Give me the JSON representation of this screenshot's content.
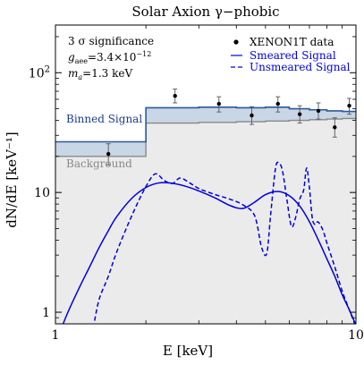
{
  "chart_data": {
    "type": "line",
    "title": "Solar Axion γ−phobic",
    "xlabel": "E [keV]",
    "ylabel": "dN/dE [keV⁻¹]",
    "x_scale": "log",
    "y_scale": "log",
    "xlim": [
      1,
      10
    ],
    "ylim": [
      0.8,
      250
    ],
    "x_ticks": [
      {
        "value": 1,
        "label": "1"
      },
      {
        "value": 10,
        "label": "10"
      }
    ],
    "y_ticks": [
      {
        "value": 1,
        "label": "1"
      },
      {
        "value": 10,
        "label": "10"
      },
      {
        "value": 100,
        "label": "10",
        "exp": "2"
      }
    ],
    "annotations": {
      "sig": "3 σ significance",
      "g_sym": "g",
      "g_sub": "aee",
      "g_val": "=3.4×10",
      "g_exp": "−12",
      "m_sym": "m",
      "m_sub": "a",
      "m_val": "=1.3 keV",
      "binned_label": "Binned Signal",
      "background_label": "Background"
    },
    "legend": {
      "position": "top-right",
      "entries": [
        {
          "label": "XENON1T data",
          "style": "point"
        },
        {
          "label": "Smeared Signal",
          "style": "solid"
        },
        {
          "label": "Unsmeared Signal",
          "style": "dashed"
        }
      ]
    },
    "colors": {
      "binned_fill": "#c9d6e6",
      "background_fill": "#ebebeb",
      "signal": "#0000dd",
      "binned_line": "#2a5a9a",
      "background_line": "#888888",
      "binned_text": "#1a3d8a",
      "background_text": "#888888"
    },
    "bins": [
      {
        "x0": 1.0,
        "x1": 2.0,
        "background": 20.0,
        "total": 26.5
      },
      {
        "x0": 2.0,
        "x1": 3.0,
        "background": 38.0,
        "total": 51.0
      },
      {
        "x0": 3.0,
        "x1": 4.0,
        "background": 38.5,
        "total": 51.5
      },
      {
        "x0": 4.0,
        "x1": 5.0,
        "background": 39.0,
        "total": 51.0
      },
      {
        "x0": 5.0,
        "x1": 6.0,
        "background": 39.5,
        "total": 51.5
      },
      {
        "x0": 6.0,
        "x1": 7.0,
        "background": 40.0,
        "total": 50.0
      },
      {
        "x0": 7.0,
        "x1": 8.0,
        "background": 40.5,
        "total": 49.0
      },
      {
        "x0": 8.0,
        "x1": 9.0,
        "background": 41.0,
        "total": 48.0
      },
      {
        "x0": 9.0,
        "x1": 10.0,
        "background": 41.5,
        "total": 47.5
      }
    ],
    "data_points": [
      {
        "x": 1.5,
        "y": 21.0,
        "ylo": 17.0,
        "yhi": 25.5
      },
      {
        "x": 2.5,
        "y": 64.0,
        "ylo": 56.0,
        "yhi": 73.0
      },
      {
        "x": 3.5,
        "y": 55.0,
        "ylo": 47.0,
        "yhi": 63.0
      },
      {
        "x": 4.5,
        "y": 44.0,
        "ylo": 37.0,
        "yhi": 52.0
      },
      {
        "x": 5.5,
        "y": 55.0,
        "ylo": 47.0,
        "yhi": 63.0
      },
      {
        "x": 6.5,
        "y": 45.0,
        "ylo": 38.0,
        "yhi": 53.0
      },
      {
        "x": 7.5,
        "y": 48.0,
        "ylo": 41.0,
        "yhi": 56.0
      },
      {
        "x": 8.5,
        "y": 35.0,
        "ylo": 29.0,
        "yhi": 42.0
      },
      {
        "x": 9.5,
        "y": 53.0,
        "ylo": 45.0,
        "yhi": 61.0
      }
    ],
    "series": [
      {
        "name": "Smeared Signal",
        "style": "solid",
        "x": [
          1.0,
          1.05,
          1.1,
          1.2,
          1.3,
          1.4,
          1.5,
          1.6,
          1.8,
          2.0,
          2.2,
          2.4,
          2.7,
          3.0,
          3.4,
          3.8,
          4.2,
          4.6,
          5.0,
          5.5,
          6.0,
          6.5,
          7.0,
          7.5,
          8.0,
          8.5,
          9.0,
          9.5,
          10.0
        ],
        "y": [
          0.55,
          0.75,
          1.0,
          1.6,
          2.4,
          3.5,
          4.8,
          6.3,
          9.0,
          11.0,
          12.0,
          12.0,
          11.3,
          10.3,
          9.0,
          7.8,
          7.35,
          8.3,
          9.6,
          10.2,
          9.4,
          7.7,
          5.7,
          4.0,
          2.8,
          2.0,
          1.4,
          1.05,
          0.78
        ]
      },
      {
        "name": "Unsmeared Signal",
        "style": "dashed",
        "x": [
          1.35,
          1.4,
          1.5,
          1.6,
          1.8,
          2.0,
          2.15,
          2.3,
          2.45,
          2.6,
          2.8,
          3.0,
          3.4,
          3.8,
          4.2,
          4.6,
          4.85,
          5.05,
          5.2,
          5.4,
          5.55,
          5.7,
          5.9,
          6.1,
          6.3,
          6.5,
          6.7,
          6.85,
          7.0,
          7.15,
          7.3,
          7.45,
          7.6,
          7.8,
          8.0,
          8.5,
          9.0,
          9.5,
          10.0
        ],
        "y": [
          0.85,
          1.3,
          2.0,
          3.2,
          6.5,
          11.2,
          14.3,
          12.6,
          11.9,
          13.2,
          12.0,
          10.8,
          9.6,
          8.8,
          7.9,
          6.4,
          3.5,
          3.1,
          6.5,
          16.0,
          17.5,
          15.0,
          8.5,
          5.2,
          6.2,
          8.8,
          10.5,
          16.0,
          11.0,
          6.2,
          5.4,
          5.7,
          5.4,
          4.7,
          3.8,
          2.4,
          1.5,
          1.05,
          0.75
        ]
      }
    ]
  }
}
